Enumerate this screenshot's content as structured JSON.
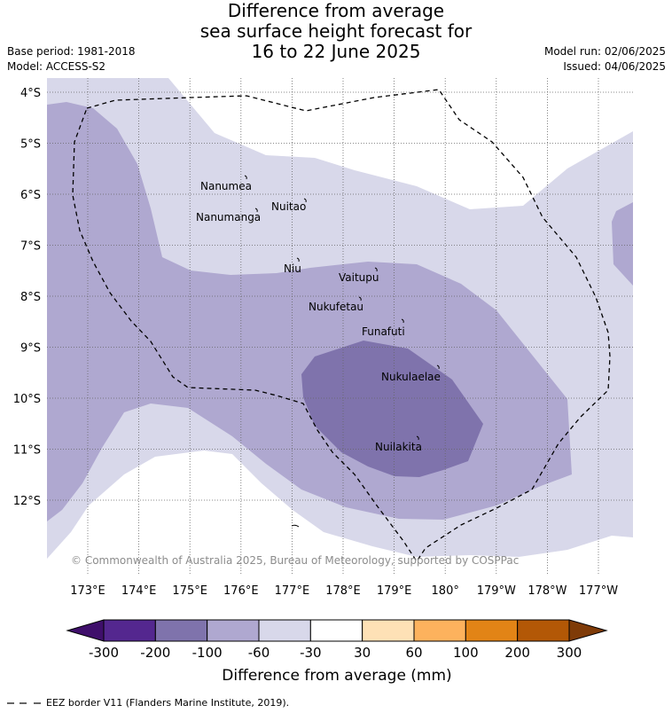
{
  "title": {
    "line1": "Difference from average",
    "line2": "sea surface height forecast for",
    "line3": "16 to 22 June 2025"
  },
  "meta": {
    "base_period": "Base period: 1981-2018",
    "model": "Model: ACCESS-S2",
    "model_run": "Model run: 02/06/2025",
    "issued": "Issued: 04/06/2025"
  },
  "copyright": "© Commonwealth of Australia 2025, Bureau of Meteorology, supported by COSPPac",
  "axes": {
    "lat_labels": [
      "4°S",
      "5°S",
      "6°S",
      "7°S",
      "8°S",
      "9°S",
      "10°S",
      "11°S",
      "12°S"
    ],
    "lon_labels": [
      "173°E",
      "174°E",
      "175°E",
      "176°E",
      "177°E",
      "178°E",
      "179°E",
      "180°",
      "179°W",
      "178°W",
      "177°W"
    ]
  },
  "islands": [
    "Nanumea",
    "Nuitao",
    "Nanumanga",
    "Niu",
    "Vaitupu",
    "Nukufetau",
    "Funafuti",
    "Nukulaelae",
    "Nuilakita"
  ],
  "colorbar": {
    "label": "Difference from average (mm)",
    "ticks": [
      "-300",
      "-200",
      "-100",
      "-60",
      "-30",
      "30",
      "60",
      "100",
      "200",
      "300"
    ],
    "colors": [
      "#3f0f6b",
      "#54278f",
      "#7f73ac",
      "#afa8d0",
      "#d8d8ea",
      "#ffffff",
      "#fee1b6",
      "#fdb25d",
      "#e28416",
      "#b35806",
      "#7f3b08"
    ]
  },
  "legend_note": "EEZ border V11 (Flanders Marine Institute, 2019)."
}
